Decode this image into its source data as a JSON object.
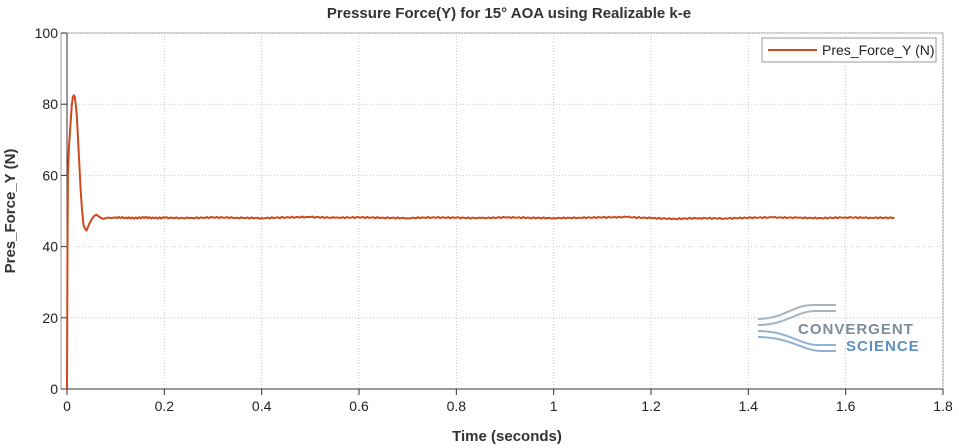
{
  "chart_data": {
    "type": "line",
    "title": "Pressure Force(Y) for 15° AOA using Realizable k-e",
    "xlabel": "Time (seconds)",
    "ylabel": "Pres_Force_Y (N)",
    "xlim": [
      0,
      1.8
    ],
    "ylim": [
      0,
      100
    ],
    "x_ticks": [
      0,
      0.2,
      0.4,
      0.6,
      0.8,
      1,
      1.2,
      1.4,
      1.6,
      1.8
    ],
    "x_tick_labels": [
      "0",
      "0.2",
      "0.4",
      "0.6",
      "0.8",
      "1",
      "1.2",
      "1.4",
      "1.6",
      "1.8"
    ],
    "y_ticks": [
      0,
      20,
      40,
      60,
      80,
      100
    ],
    "y_tick_labels": [
      "0",
      "20",
      "40",
      "60",
      "80",
      "100"
    ],
    "grid": true,
    "legend_position": "top-right",
    "series": [
      {
        "name": "Pres_Force_Y (N)",
        "color": "#cc4a1c",
        "x": [
          0,
          0.001,
          0.002,
          0.004,
          0.006,
          0.008,
          0.01,
          0.012,
          0.014,
          0.016,
          0.018,
          0.02,
          0.022,
          0.025,
          0.028,
          0.031,
          0.034,
          0.037,
          0.04,
          0.043,
          0.046,
          0.05,
          0.055,
          0.06,
          0.065,
          0.07,
          0.075,
          0.08,
          0.085,
          0.09,
          0.1,
          0.12,
          0.14,
          0.16,
          0.18,
          0.2,
          0.25,
          0.3,
          0.35,
          0.4,
          0.45,
          0.5,
          0.55,
          0.6,
          0.65,
          0.7,
          0.75,
          0.8,
          0.85,
          0.9,
          0.95,
          1.0,
          1.05,
          1.1,
          1.15,
          1.2,
          1.25,
          1.3,
          1.35,
          1.4,
          1.45,
          1.5,
          1.55,
          1.6,
          1.65,
          1.7
        ],
        "y": [
          0,
          40,
          60,
          68,
          72,
          76,
          80,
          82,
          82.5,
          82,
          80,
          77,
          72,
          64,
          56,
          50,
          46,
          45,
          44.5,
          45.5,
          46.5,
          47.5,
          48.5,
          49,
          48.5,
          48,
          47.8,
          48,
          48.2,
          48,
          48.2,
          48.1,
          48,
          48.2,
          48,
          48.1,
          48,
          48.2,
          48.1,
          48,
          48.2,
          48.3,
          48.1,
          48.2,
          48.1,
          48,
          48.2,
          48.1,
          48,
          48.2,
          48.1,
          48,
          48.1,
          48.2,
          48.3,
          48,
          47.8,
          48,
          47.9,
          48.1,
          48.2,
          48.1,
          48,
          48.2,
          48.1,
          48.1
        ]
      }
    ]
  },
  "watermark": {
    "line1": "CONVERGENT",
    "line2": "SCIENCE",
    "color1": "#7e8b99",
    "color2": "#5b8fc0"
  }
}
